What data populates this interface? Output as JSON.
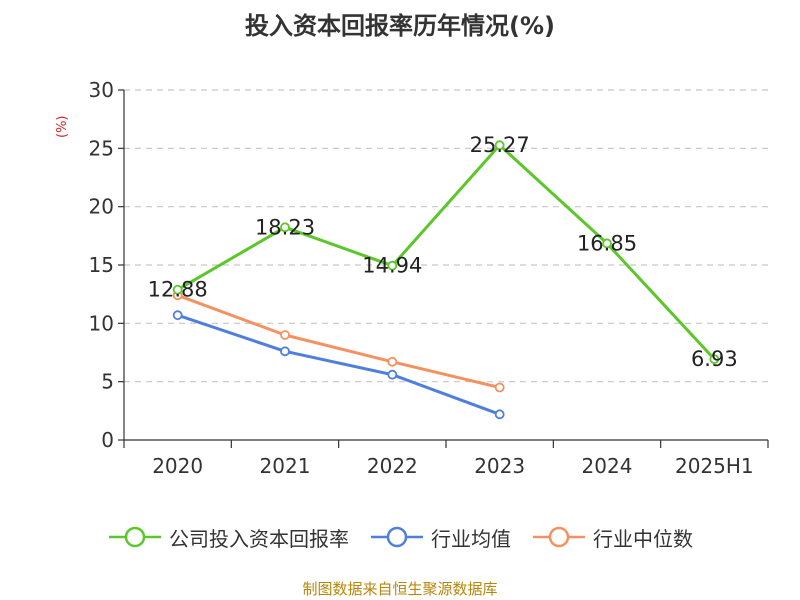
{
  "chart_data": {
    "type": "line",
    "title": "投入资本回报率历年情况(%)",
    "ylabel": "(%)",
    "xlabel": "",
    "categories": [
      "2020",
      "2021",
      "2022",
      "2023",
      "2024",
      "2025H1"
    ],
    "ylim": [
      0,
      30
    ],
    "yticks": [
      0,
      5,
      10,
      15,
      20,
      25,
      30
    ],
    "grid": true,
    "legend_position": "bottom",
    "series": [
      {
        "name": "公司投入资本回报率",
        "color": "#5bc72b",
        "values": [
          12.88,
          18.23,
          14.94,
          25.27,
          16.85,
          6.93
        ],
        "data_labels": [
          "12.88",
          "18.23",
          "14.94",
          "25.27",
          "16.85",
          "6.93"
        ]
      },
      {
        "name": "行业均值",
        "color": "#4f7fdc",
        "values": [
          10.7,
          7.6,
          5.6,
          2.2,
          null,
          null
        ]
      },
      {
        "name": "行业中位数",
        "color": "#f59160",
        "values": [
          12.4,
          9.0,
          6.7,
          4.5,
          null,
          null
        ]
      }
    ]
  },
  "footer": {
    "source": "制图数据来自恒生聚源数据库"
  }
}
